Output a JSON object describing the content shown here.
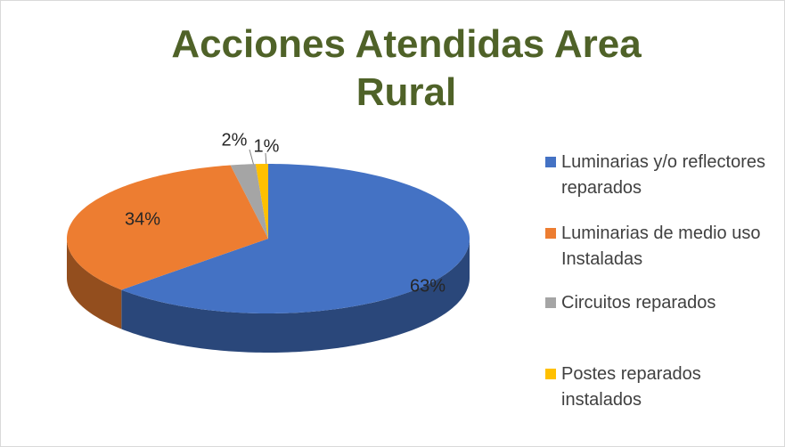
{
  "chart_data": {
    "type": "pie",
    "title": "Acciones Atendidas Area Rural",
    "categories": [
      "Luminarias y/o reflectores reparados",
      "Luminarias de medio uso Instaladas",
      "Circuitos reparados",
      "Postes reparados instalados"
    ],
    "values": [
      63,
      34,
      2,
      1
    ],
    "value_labels": [
      "63%",
      "34%",
      "2%",
      "1%"
    ],
    "colors": [
      "#4472c4",
      "#ed7d31",
      "#a5a5a5",
      "#ffc000"
    ],
    "legend": "right"
  }
}
